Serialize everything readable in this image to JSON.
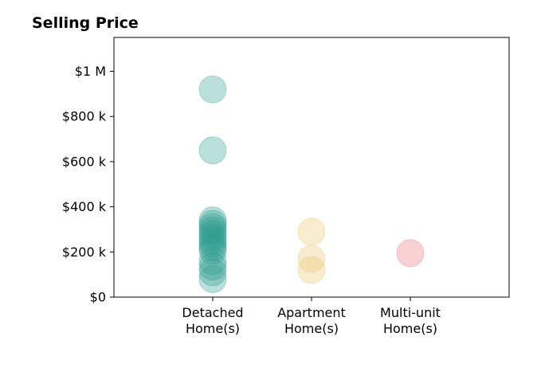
{
  "chart_data": {
    "type": "scatter",
    "title": "Selling Price",
    "xlabel": "",
    "ylabel": "",
    "categories": [
      "Detached\nHome(s)",
      "Apartment\nHome(s)",
      "Multi-unit\nHome(s)"
    ],
    "y_ticks": [
      {
        "value": 0,
        "label": "$0"
      },
      {
        "value": 200000,
        "label": "$200 k"
      },
      {
        "value": 400000,
        "label": "$400 k"
      },
      {
        "value": 600000,
        "label": "$600 k"
      },
      {
        "value": 800000,
        "label": "$800 k"
      },
      {
        "value": 1000000,
        "label": "$1 M"
      }
    ],
    "ylim": [
      0,
      1150000
    ],
    "xlim": [
      -1,
      3
    ],
    "grid": false,
    "series": [
      {
        "category": "Detached\nHome(s)",
        "color": "#2a9d8f",
        "values": [
          920000,
          650000,
          340000,
          325000,
          310000,
          295000,
          280000,
          265000,
          250000,
          235000,
          220000,
          205000,
          160000,
          135000,
          110000,
          80000
        ]
      },
      {
        "category": "Apartment\nHome(s)",
        "color": "#e9c46a",
        "values": [
          290000,
          170000,
          120000
        ]
      },
      {
        "category": "Multi-unit\nHome(s)",
        "color": "#e76f7a",
        "values": [
          195000
        ]
      }
    ]
  }
}
